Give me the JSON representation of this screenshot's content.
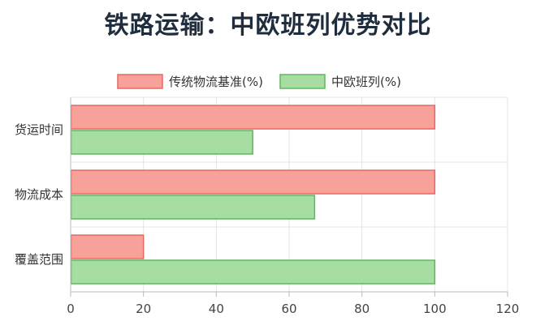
{
  "chart_data": {
    "type": "bar",
    "orientation": "horizontal",
    "title": "铁路运输：中欧班列优势对比",
    "categories": [
      "货运时间",
      "物流成本",
      "覆盖范围"
    ],
    "series": [
      {
        "name": "传统物流基准(%)",
        "values": [
          100,
          100,
          20
        ],
        "color": "#f7a19a",
        "border": "#e8695f"
      },
      {
        "name": "中欧班列(%)",
        "values": [
          50,
          67,
          100
        ],
        "color": "#a7dca2",
        "border": "#5fb85a"
      }
    ],
    "xlim": [
      0,
      120
    ],
    "xticks": [
      0,
      20,
      40,
      60,
      80,
      100,
      120
    ],
    "grid": true,
    "legend_position": "top"
  }
}
